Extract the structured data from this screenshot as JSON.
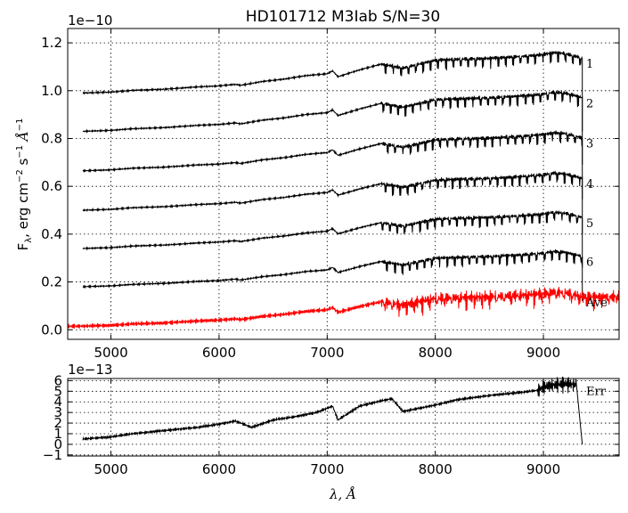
{
  "chart_data": [
    {
      "type": "line",
      "title": "HD101712  M3Iab  S/N=30",
      "exponent_label": "1e−10",
      "ylabel_parts": {
        "base": "F",
        "sub": "λ",
        "rest": ", erg cm",
        "sup1": "−2",
        "mid": " s",
        "sup2": "−1",
        "tail": " Å",
        "sup3": "−1"
      },
      "xlim": [
        4600,
        9700
      ],
      "ylim": [
        -0.04,
        1.26
      ],
      "xticks": [
        5000,
        6000,
        7000,
        8000,
        9000
      ],
      "xtick_labels": [
        "5000",
        "6000",
        "7000",
        "8000",
        "9000"
      ],
      "yticks": [
        0.0,
        0.2,
        0.4,
        0.6,
        0.8,
        1.0,
        1.2
      ],
      "ytick_labels": [
        "0.0",
        "0.2",
        "0.4",
        "0.6",
        "0.8",
        "1.0",
        "1.2"
      ],
      "grid": true,
      "spectrum_shape": {
        "x": [
          4740,
          5000,
          5200,
          5500,
          5800,
          6000,
          6150,
          6200,
          6400,
          6600,
          6800,
          7000,
          7050,
          7100,
          7300,
          7500,
          7700,
          8000,
          8200,
          8500,
          8800,
          9000,
          9100,
          9200,
          9300,
          9360
        ],
        "y": [
          0.0,
          0.005,
          0.014,
          0.02,
          0.032,
          0.037,
          0.045,
          0.04,
          0.06,
          0.072,
          0.09,
          0.1,
          0.115,
          0.085,
          0.12,
          0.15,
          0.13,
          0.17,
          0.175,
          0.18,
          0.19,
          0.2,
          0.21,
          0.205,
          0.19,
          0.18
        ]
      },
      "series": [
        {
          "name": "1",
          "offset": 0.99,
          "scale": 0.85,
          "color": "#000000"
        },
        {
          "name": "2",
          "offset": 0.83,
          "scale": 0.82,
          "color": "#000000"
        },
        {
          "name": "3",
          "offset": 0.665,
          "scale": 0.8,
          "color": "#000000"
        },
        {
          "name": "4",
          "offset": 0.5,
          "scale": 0.78,
          "color": "#000000"
        },
        {
          "name": "5",
          "offset": 0.34,
          "scale": 0.76,
          "color": "#000000"
        },
        {
          "name": "6",
          "offset": 0.18,
          "scale": 0.74,
          "color": "#000000"
        },
        {
          "name": "Ave",
          "offset": 0.015,
          "scale": 0.72,
          "color": "#ff0000",
          "x_end": 9700
        }
      ]
    },
    {
      "type": "line",
      "exponent_label": "1e−13",
      "xlabel": "λ, Å",
      "xlim": [
        4600,
        9700
      ],
      "ylim": [
        -1.1,
        6.2
      ],
      "xticks": [
        5000,
        6000,
        7000,
        8000,
        9000
      ],
      "xtick_labels": [
        "5000",
        "6000",
        "7000",
        "8000",
        "9000"
      ],
      "yticks": [
        -1,
        0,
        1,
        2,
        3,
        4,
        5,
        6
      ],
      "ytick_labels": [
        "−1",
        "0",
        "1",
        "2",
        "3",
        "4",
        "5",
        "6"
      ],
      "grid": true,
      "series": [
        {
          "name": "Err",
          "color": "#000000",
          "x": [
            4740,
            5000,
            5200,
            5500,
            5800,
            6000,
            6150,
            6300,
            6500,
            6700,
            6900,
            7050,
            7100,
            7300,
            7500,
            7600,
            7700,
            8000,
            8200,
            8500,
            8800,
            8950,
            9000,
            9100,
            9200,
            9300,
            9360
          ],
          "y": [
            0.5,
            0.7,
            1.0,
            1.3,
            1.6,
            1.9,
            2.2,
            1.6,
            2.3,
            2.6,
            3.0,
            3.6,
            2.3,
            3.6,
            4.1,
            4.3,
            3.1,
            3.7,
            4.2,
            4.6,
            4.9,
            5.1,
            5.4,
            5.6,
            5.7,
            5.6,
            0.0
          ]
        }
      ]
    }
  ]
}
